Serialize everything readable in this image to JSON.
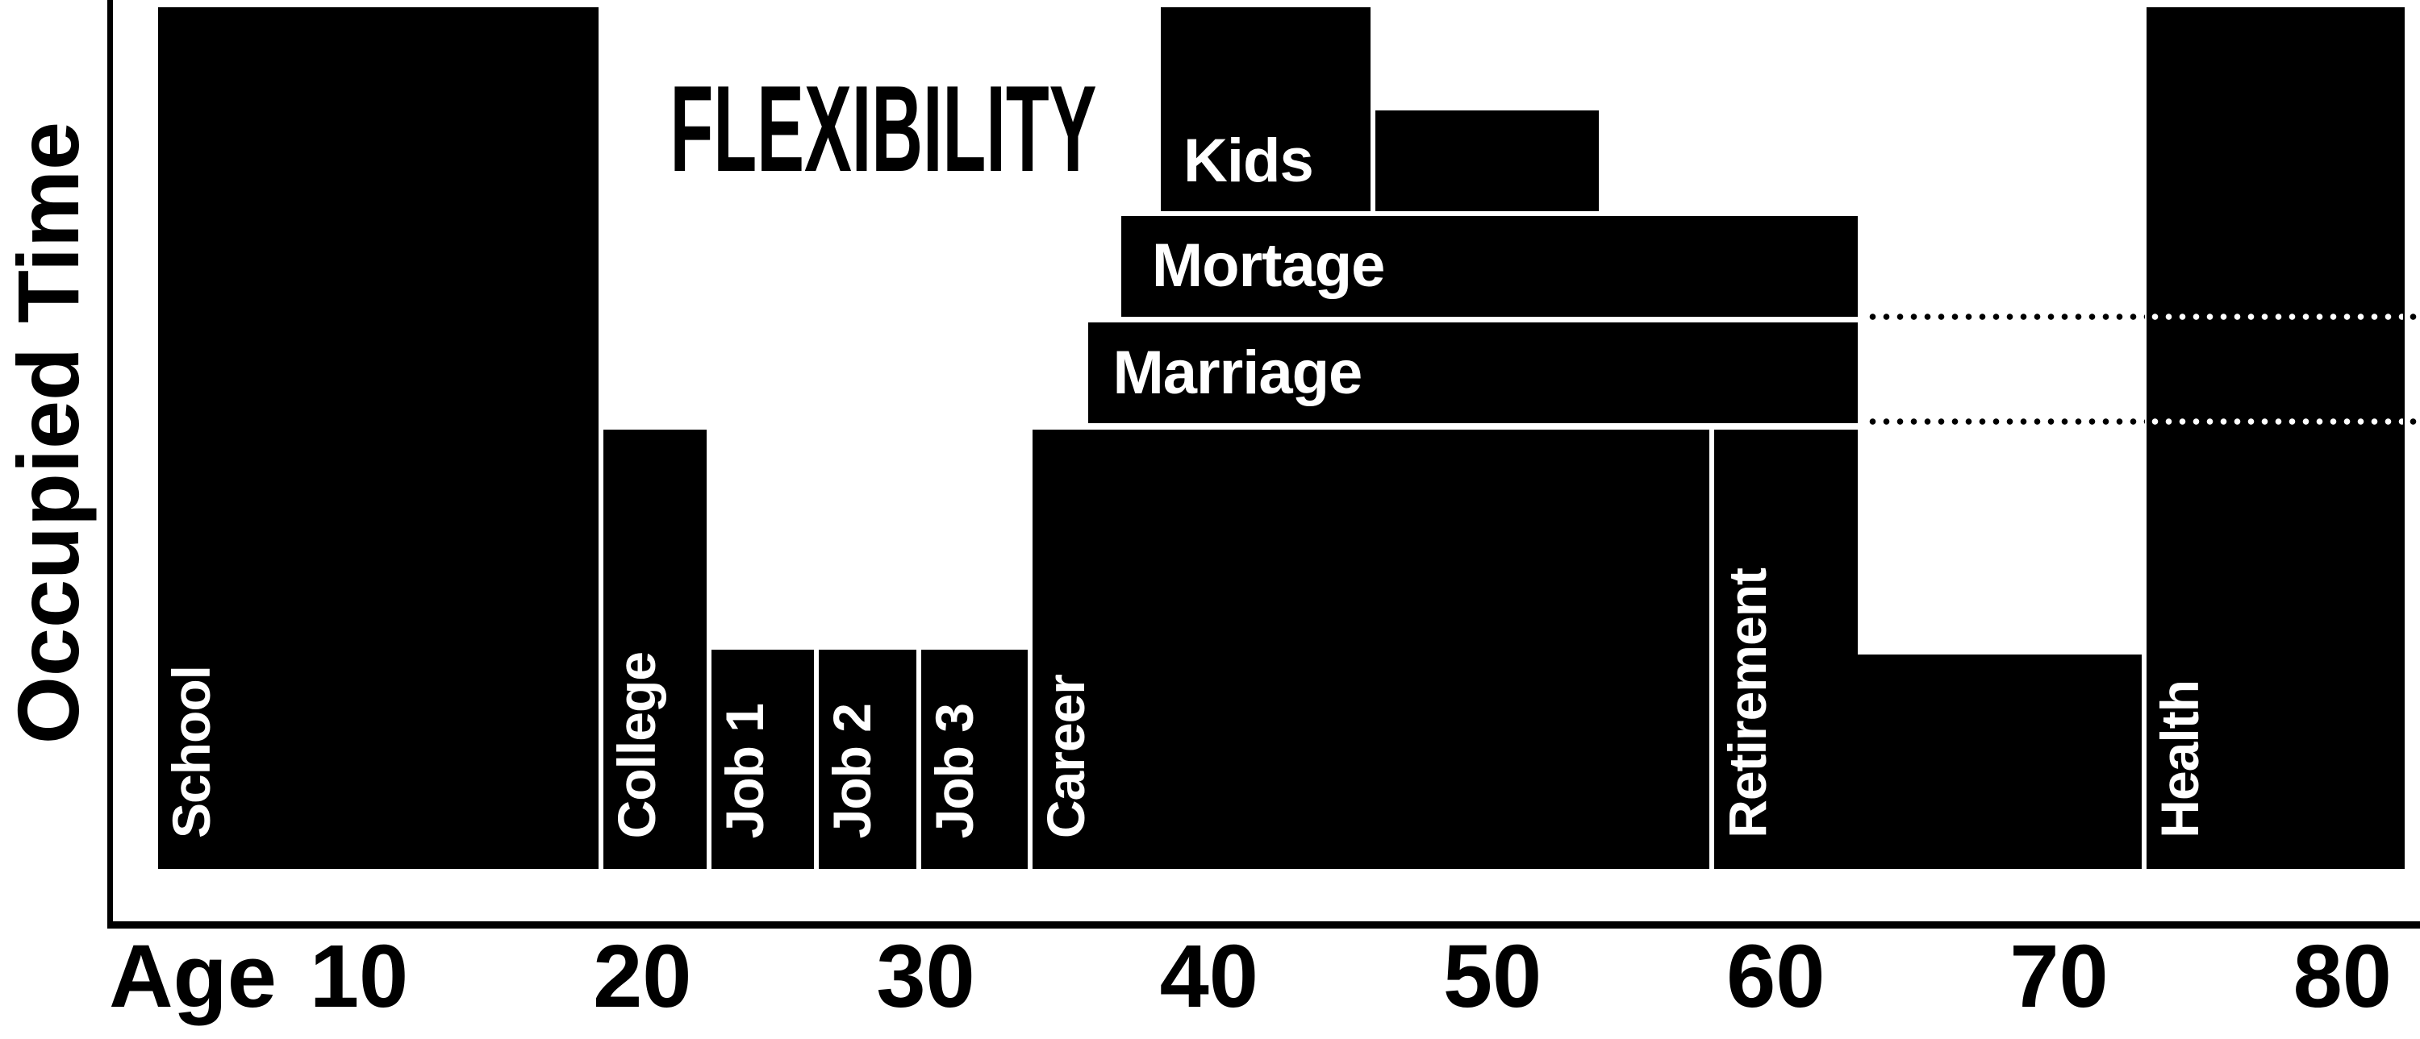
{
  "chart_data": {
    "type": "bar",
    "title": "FLEXIBILITY",
    "ylabel": "Occupied Time",
    "xlabel_prefix": "Age",
    "x_ticks": [
      10,
      20,
      30,
      40,
      50,
      60,
      70,
      80
    ],
    "x_range": [
      10,
      80
    ],
    "y_axis": "unlabeled occupied-time scale, 0-100%",
    "grid": "off",
    "colors": {
      "bar": "#000000",
      "bar_label": "#ffffff",
      "axis": "#000000",
      "background": "#ffffff"
    },
    "bars": [
      {
        "id": "school",
        "label": "School",
        "label_orientation": "vertical",
        "age_start": 2.9,
        "age_end": 18.55,
        "pct_bottom": 0,
        "pct_top": 100,
        "gap_left": false,
        "gap_right": true
      },
      {
        "id": "college",
        "label": "College",
        "label_orientation": "vertical",
        "age_start": 18.55,
        "age_end": 22.35,
        "pct_bottom": 0,
        "pct_top": 51,
        "gap_left": true,
        "gap_right": true
      },
      {
        "id": "job-1",
        "label": "Job 1",
        "label_orientation": "vertical",
        "age_start": 22.35,
        "age_end": 26.15,
        "pct_bottom": 0,
        "pct_top": 25.4,
        "gap_left": true,
        "gap_right": true
      },
      {
        "id": "job-2",
        "label": "Job 2",
        "label_orientation": "vertical",
        "age_start": 26.15,
        "age_end": 29.75,
        "pct_bottom": 0,
        "pct_top": 25.4,
        "gap_left": true,
        "gap_right": true
      },
      {
        "id": "job-3",
        "label": "Job 3",
        "label_orientation": "vertical",
        "age_start": 29.75,
        "age_end": 33.7,
        "pct_bottom": 0,
        "pct_top": 25.4,
        "gap_left": true,
        "gap_right": true
      },
      {
        "id": "career",
        "label": "Career",
        "label_orientation": "vertical",
        "age_start": 33.7,
        "age_end": 57.75,
        "pct_bottom": 0,
        "pct_top": 51,
        "gap_left": true,
        "gap_right": true
      },
      {
        "id": "retirement",
        "label": "Retirement",
        "label_orientation": "vertical",
        "age_start": 57.75,
        "age_end": 62.9,
        "pct_bottom": 0,
        "pct_top": 51,
        "gap_left": true,
        "gap_right": false
      },
      {
        "id": "post-retirement",
        "label": "",
        "label_orientation": "none",
        "age_start": 62.9,
        "age_end": 73.0,
        "pct_bottom": 0,
        "pct_top": 24.9,
        "gap_left": false,
        "gap_right": true
      },
      {
        "id": "health",
        "label": "Health",
        "label_orientation": "vertical",
        "age_start": 73.0,
        "age_end": 82.2,
        "pct_bottom": 0,
        "pct_top": 100,
        "gap_left": true,
        "gap_right": false
      },
      {
        "id": "kids-early",
        "label": "Kids",
        "label_orientation": "horizontal",
        "age_start": 38.3,
        "age_end": 45.8,
        "pct_bottom": 76.3,
        "pct_top": 100,
        "gap_left": false,
        "gap_right": true,
        "label_center_pct": 82.1
      },
      {
        "id": "kids-late",
        "label": "",
        "label_orientation": "none",
        "age_start": 45.8,
        "age_end": 53.75,
        "pct_bottom": 76.3,
        "pct_top": 88,
        "gap_left": true,
        "gap_right": false
      },
      {
        "id": "mortage",
        "label": "Mortage",
        "label_orientation": "horizontal",
        "age_start": 36.9,
        "age_end": 62.9,
        "pct_bottom": 64.1,
        "pct_top": 75.8,
        "gap_left": false,
        "gap_right": false
      },
      {
        "id": "marriage",
        "label": "Marriage",
        "label_orientation": "horizontal",
        "age_start": 35.75,
        "age_end": 62.9,
        "pct_bottom": 51.75,
        "pct_top": 63.4,
        "gap_left": false,
        "gap_right": false
      }
    ],
    "dotted_lines": [
      {
        "y_pct": 64.1,
        "aligns_with": "Mortage bottom"
      },
      {
        "y_pct": 51.9,
        "aligns_with": "Marriage bottom"
      }
    ]
  }
}
